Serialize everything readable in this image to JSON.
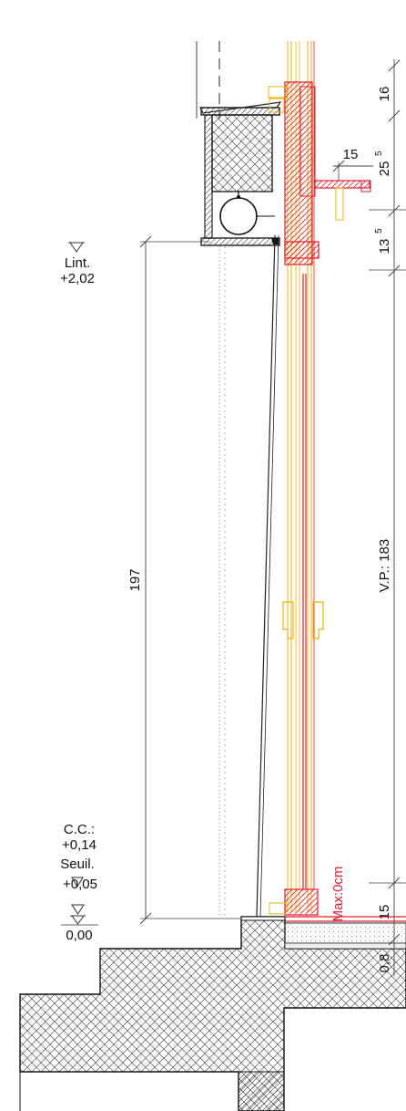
{
  "colors": {
    "ink": "#1a1a1a",
    "frame_red": "#e8192c",
    "glazing_yellow": "#e8b400",
    "hatch": "#333333"
  },
  "levels": {
    "lintel": {
      "label": "Lint.",
      "value": "+2,02"
    },
    "clear_height": {
      "label": "C.C.:",
      "value": "+0,14"
    },
    "sill": {
      "label": "Seuil.",
      "value": "+0,05"
    },
    "floor": {
      "value": "0,00"
    }
  },
  "dimensions": {
    "opening_height": "197",
    "top_16": "16",
    "top_25": "25",
    "top_25_sup": "5",
    "top_13": "13",
    "top_13_sup": "5",
    "projection_15": "15",
    "visible_passage": "V.P.: 183",
    "bottom_15": "15",
    "bottom_08": "0,8",
    "threshold_note": "Max:0cm"
  },
  "icons": [
    "level-marker-icon",
    "roller-shutter-icon"
  ]
}
